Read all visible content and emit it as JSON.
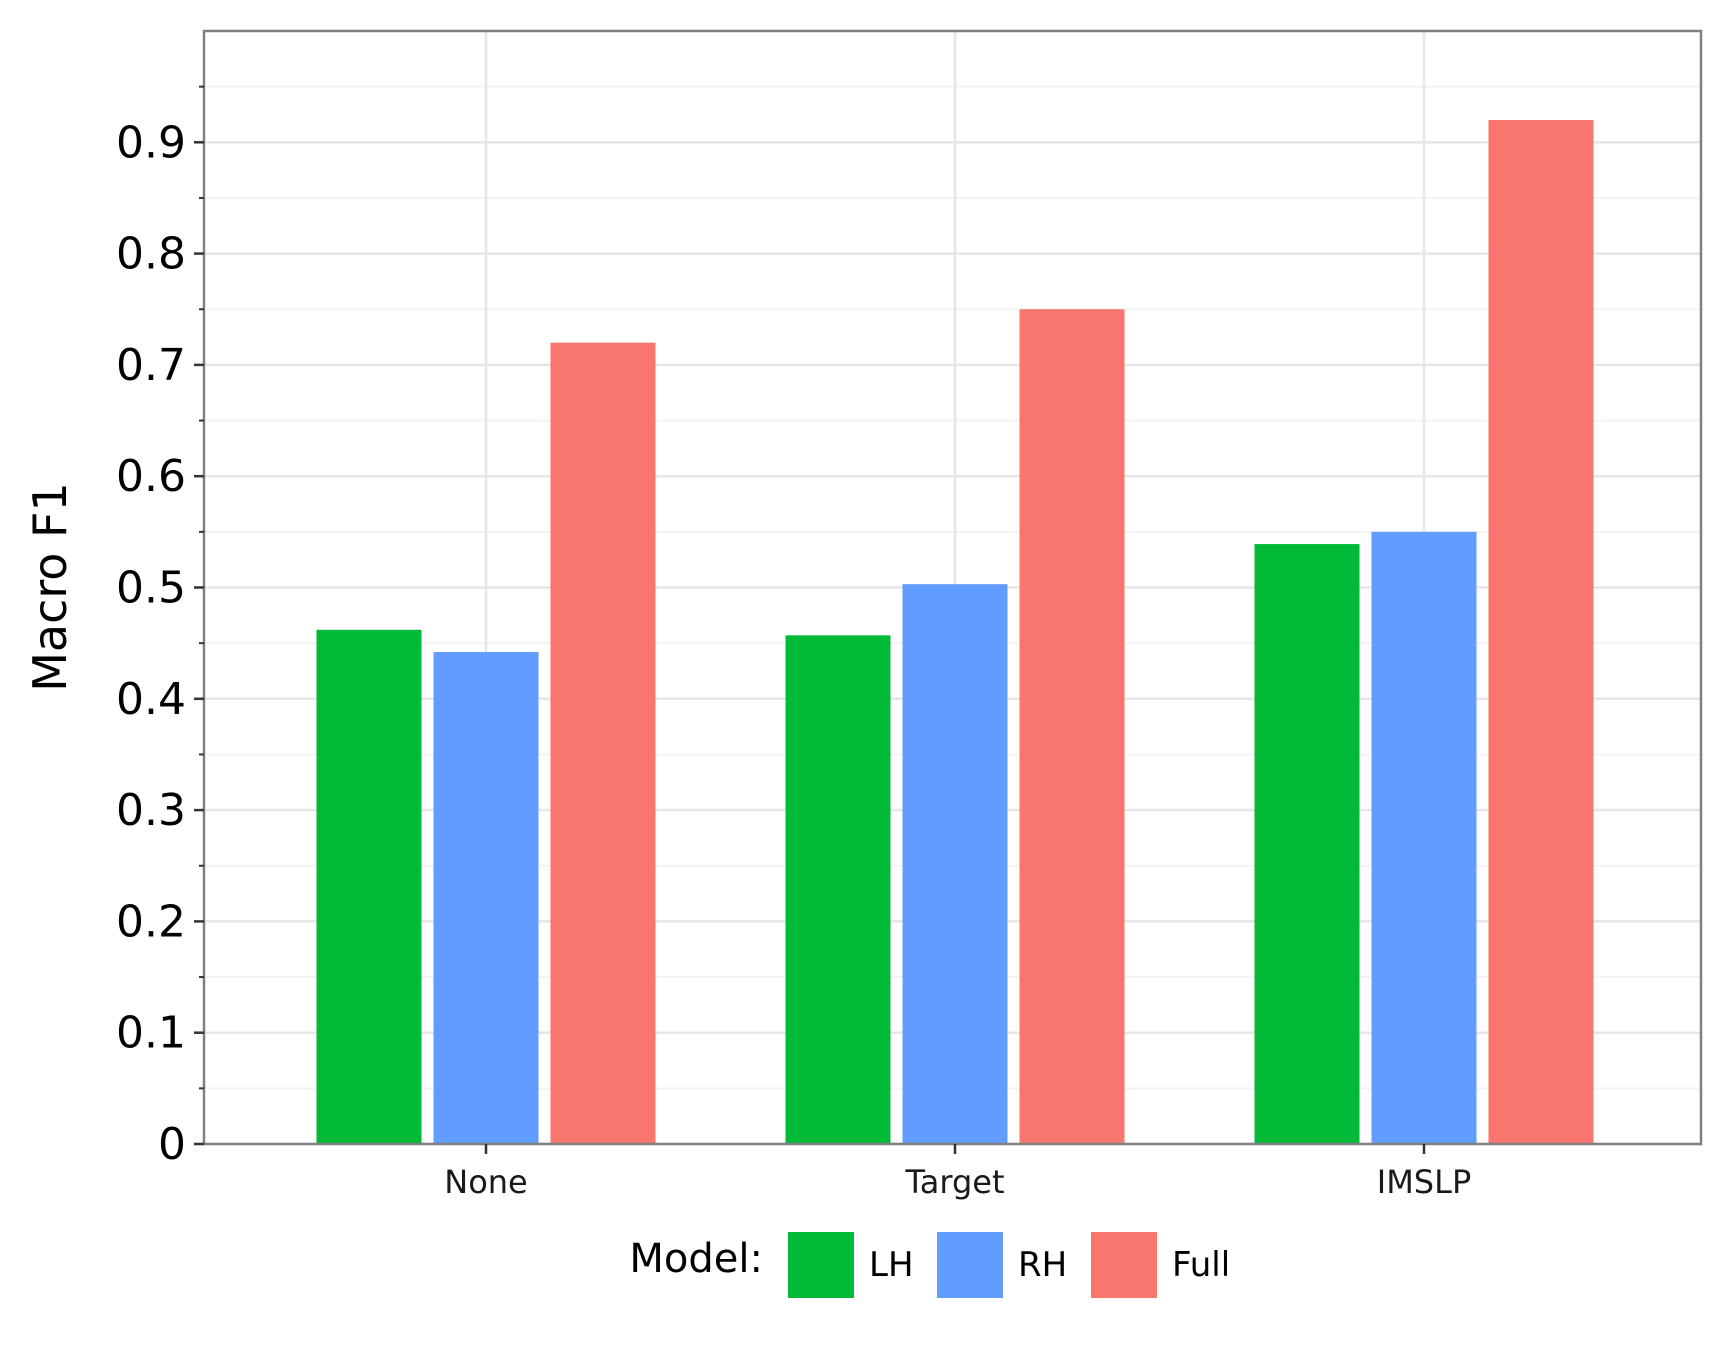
{
  "chart_data": {
    "type": "bar",
    "categories": [
      "None",
      "Target",
      "IMSLP"
    ],
    "series": [
      {
        "name": "LH",
        "values": [
          0.462,
          0.457,
          0.539
        ],
        "color": "#00ba38"
      },
      {
        "name": "RH",
        "values": [
          0.442,
          0.503,
          0.55
        ],
        "color": "#619cff"
      },
      {
        "name": "Full",
        "values": [
          0.72,
          0.75,
          0.92
        ],
        "color": "#f8766d"
      }
    ],
    "xlabel": "",
    "ylabel": "Macro F1",
    "ylim": [
      0,
      1.0
    ],
    "yticks": [
      "0",
      "0.1",
      "0.2",
      "0.3",
      "0.4",
      "0.5",
      "0.6",
      "0.7",
      "0.8",
      "0.9"
    ],
    "legend": {
      "title": "Model:",
      "position": "bottom"
    },
    "grid": true
  }
}
